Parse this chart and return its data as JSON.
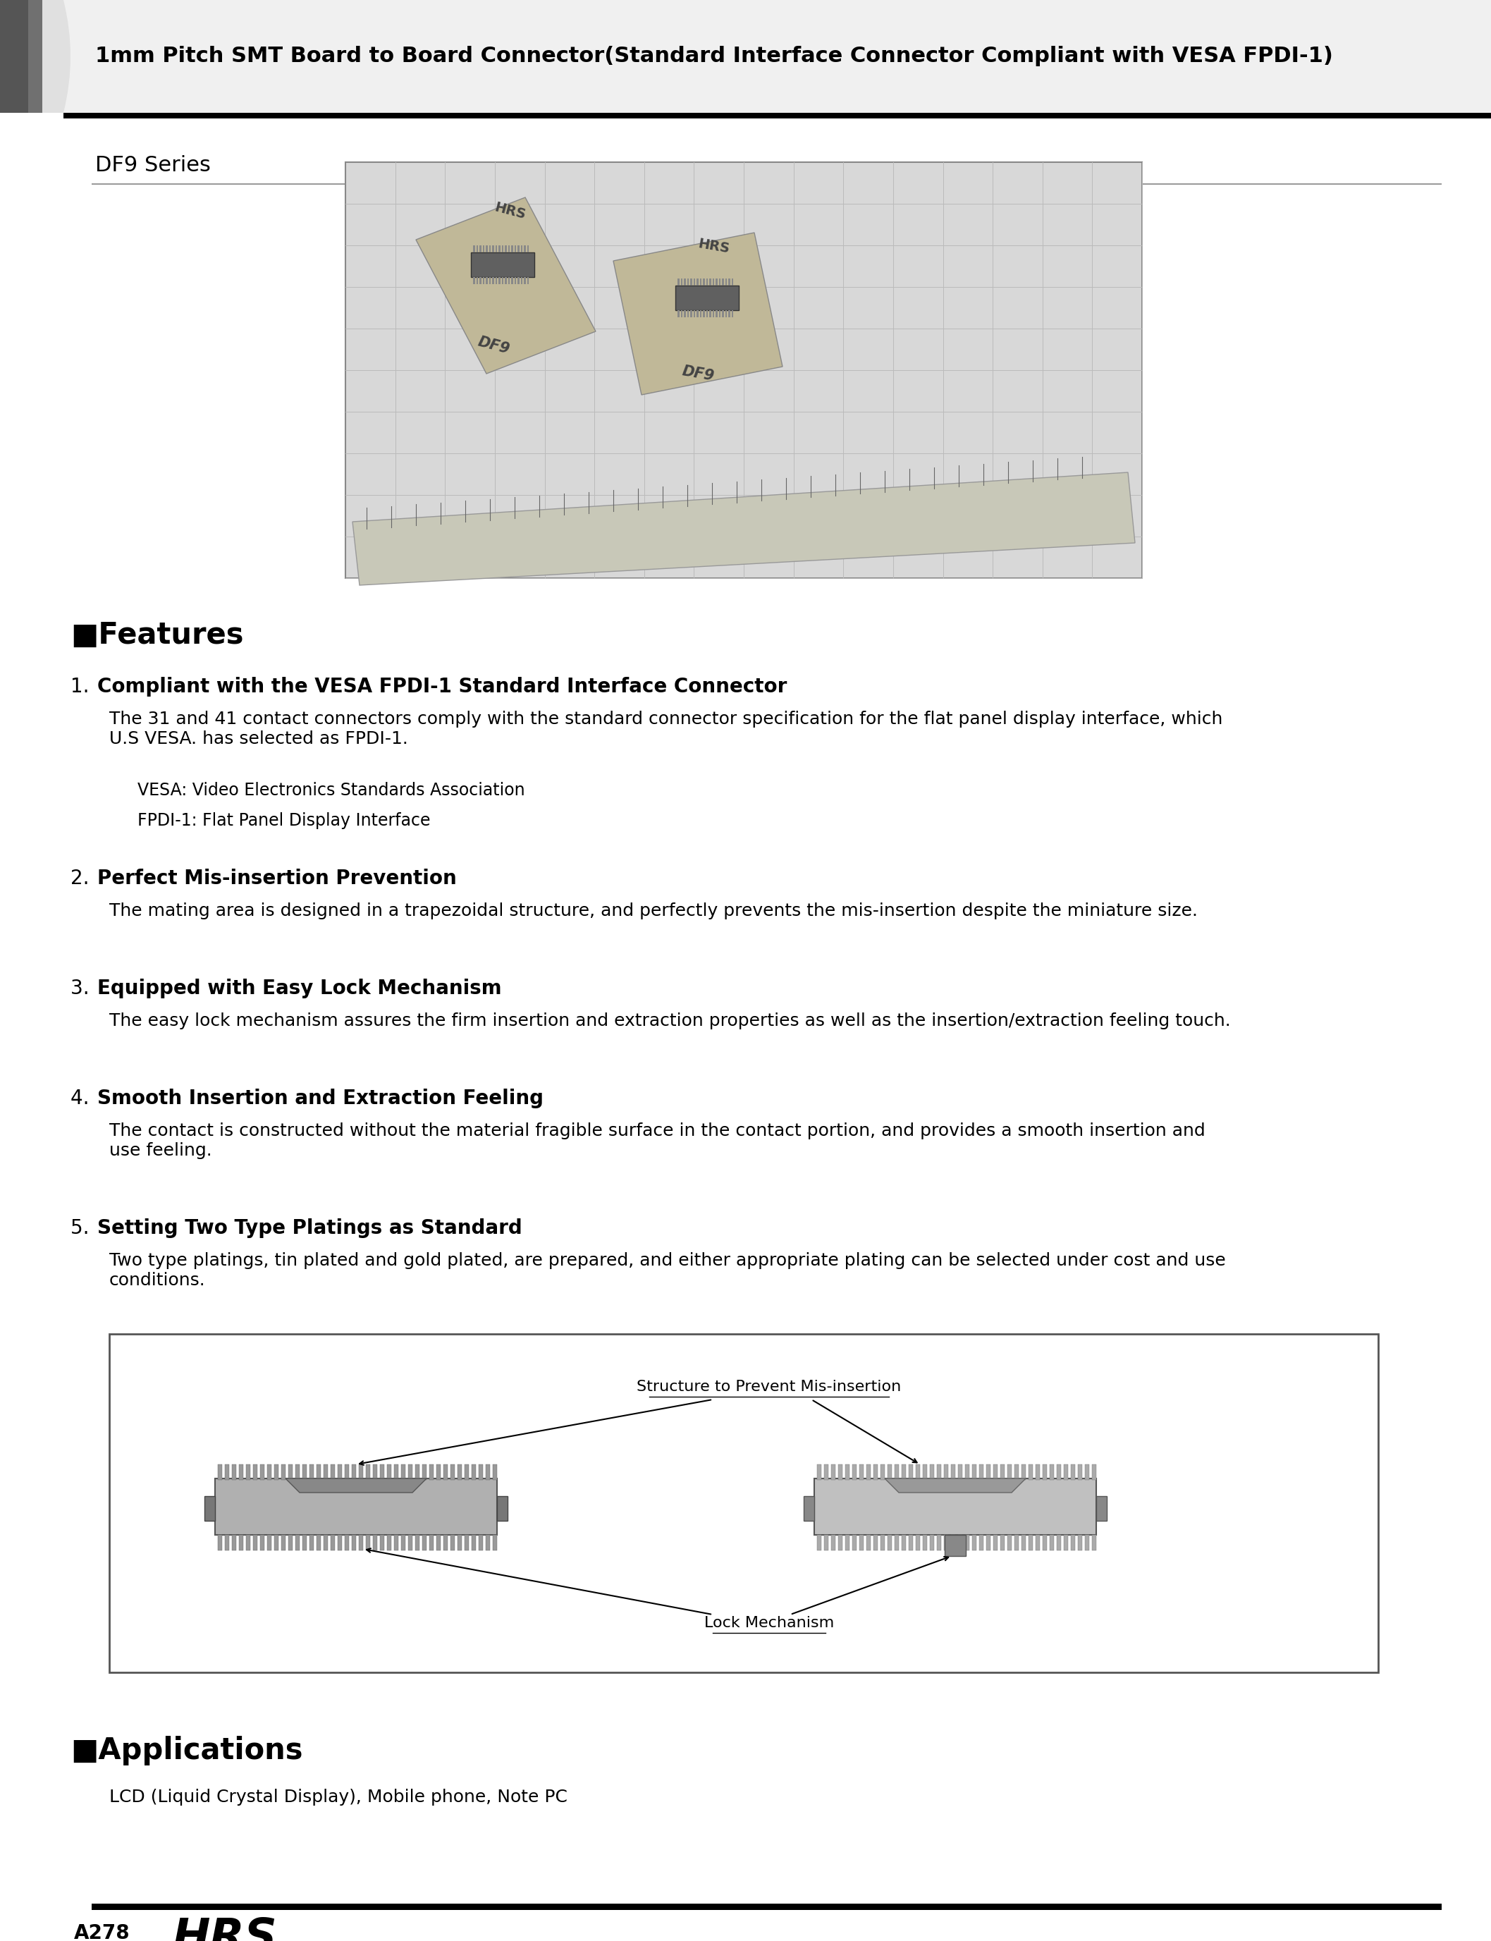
{
  "page_bg": "#ffffff",
  "title_text": "1mm Pitch SMT Board to Board Connector(Standard Interface Connector Compliant with VESA FPDI-1)",
  "subtitle_text": "DF9 Series",
  "features_heading": "■Features",
  "feature1_heading_num": "1.",
  "feature1_heading_bold": "Compliant with the VESA FPDI-1 Standard Interface Connector",
  "feature1_body": "The 31 and 41 contact connectors comply with the standard connector specification for the flat panel display interface, which\nU.S VESA. has selected as FPDI-1.",
  "feature1_note1": "VESA: Video Electronics Standards Association",
  "feature1_note2": "FPDI-1: Flat Panel Display Interface",
  "feature2_heading_num": "2.",
  "feature2_heading_bold": "Perfect Mis-insertion Prevention",
  "feature2_body": "The mating area is designed in a trapezoidal structure, and perfectly prevents the mis-insertion despite the miniature size.",
  "feature3_heading_num": "3.",
  "feature3_heading_bold": "Equipped with Easy Lock Mechanism",
  "feature3_body": "The easy lock mechanism assures the firm insertion and extraction properties as well as the insertion/extraction feeling touch.",
  "feature4_heading_num": "4.",
  "feature4_heading_bold": "Smooth Insertion and Extraction Feeling",
  "feature4_body": "The contact is constructed without the material fragible surface in the contact portion, and provides a smooth insertion and\nuse feeling.",
  "feature5_heading_num": "5.",
  "feature5_heading_bold": "Setting Two Type Platings as Standard",
  "feature5_body": "Two type platings, tin plated and gold plated, are prepared, and either appropriate plating can be selected under cost and use\nconditions.",
  "diagram_label1": "Structure to Prevent Mis-insertion",
  "diagram_label2": "Lock Mechanism",
  "applications_heading": "■Applications",
  "applications_body": "LCD (Liquid Crystal Display), Mobile phone, Note PC",
  "footer_page": "A278",
  "footer_logo": "HRS"
}
